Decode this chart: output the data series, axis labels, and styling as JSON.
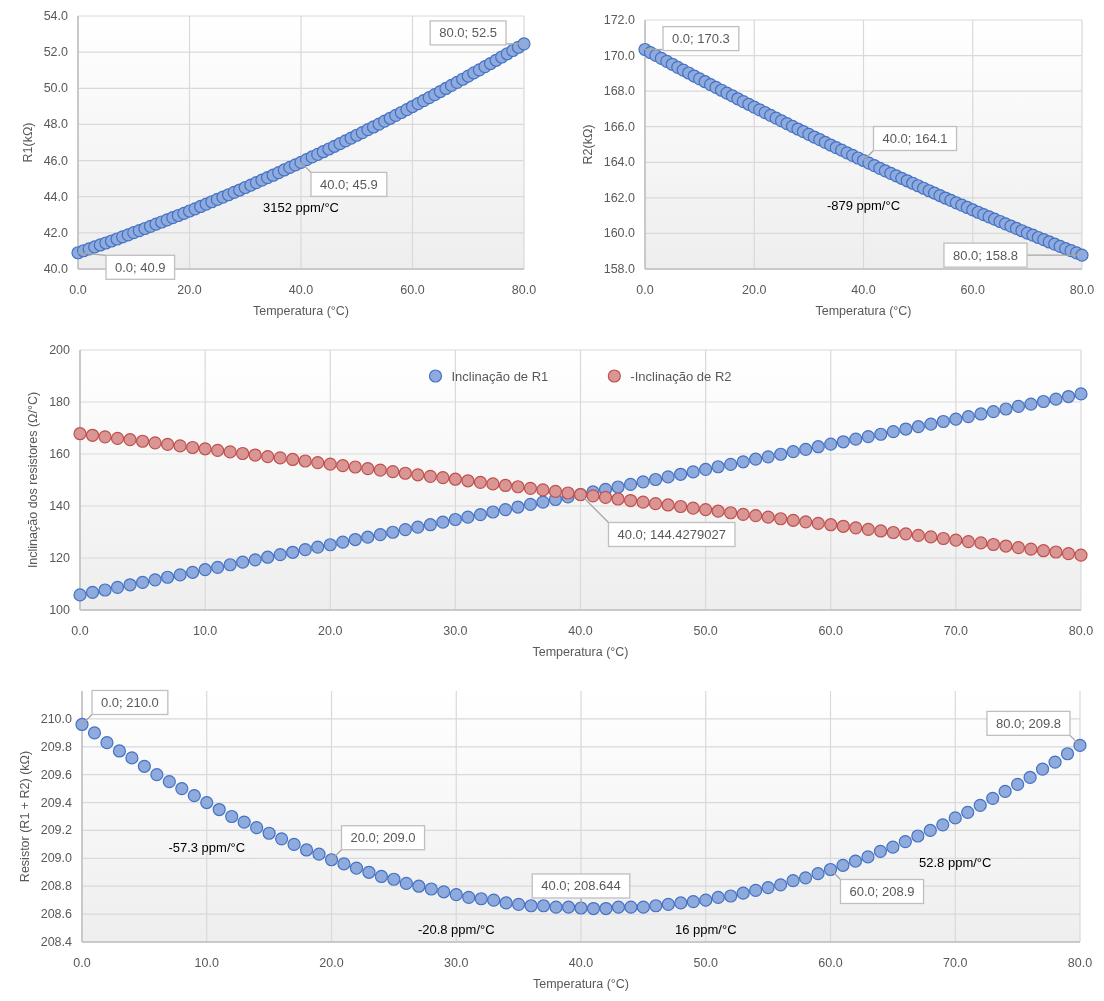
{
  "chart_data": [
    {
      "type": "scatter",
      "xlabel": "Temperatura (°C)",
      "ylabel": "R1(kΩ)",
      "xlim": [
        0,
        80
      ],
      "xticks": [
        {
          "value": 0,
          "label": "0.0"
        },
        {
          "value": 20,
          "label": "20.0"
        },
        {
          "value": 40,
          "label": "40.0"
        },
        {
          "value": 60,
          "label": "60.0"
        },
        {
          "value": 80,
          "label": "80.0"
        }
      ],
      "ylim": [
        40,
        54
      ],
      "yticks": [
        {
          "value": 40,
          "label": "40.0"
        },
        {
          "value": 42,
          "label": "42.0"
        },
        {
          "value": 44,
          "label": "44.0"
        },
        {
          "value": 46,
          "label": "46.0"
        },
        {
          "value": 48,
          "label": "48.0"
        },
        {
          "value": 50,
          "label": "50.0"
        },
        {
          "value": 52,
          "label": "52.0"
        },
        {
          "value": 54,
          "label": "54.0"
        }
      ],
      "grid": true,
      "marker": "circle",
      "x": [
        0,
        1,
        2,
        3,
        4,
        5,
        6,
        7,
        8,
        9,
        10,
        11,
        12,
        13,
        14,
        15,
        16,
        17,
        18,
        19,
        20,
        21,
        22,
        23,
        24,
        25,
        26,
        27,
        28,
        29,
        30,
        31,
        32,
        33,
        34,
        35,
        36,
        37,
        38,
        39,
        40,
        41,
        42,
        43,
        44,
        45,
        46,
        47,
        48,
        49,
        50,
        51,
        52,
        53,
        54,
        55,
        56,
        57,
        58,
        59,
        60,
        61,
        62,
        63,
        64,
        65,
        66,
        67,
        68,
        69,
        70,
        71,
        72,
        73,
        74,
        75,
        76,
        77,
        78,
        79,
        80
      ],
      "series": [
        {
          "color": "#4472c4",
          "values": [
            40.9,
            41.01,
            41.11,
            41.22,
            41.33,
            41.44,
            41.55,
            41.66,
            41.78,
            41.89,
            42.01,
            42.12,
            42.24,
            42.36,
            42.48,
            42.6,
            42.72,
            42.84,
            42.96,
            43.08,
            43.21,
            43.33,
            43.46,
            43.59,
            43.72,
            43.85,
            43.98,
            44.11,
            44.24,
            44.37,
            44.51,
            44.64,
            44.78,
            44.92,
            45.06,
            45.19,
            45.33,
            45.48,
            45.62,
            45.76,
            45.9,
            46.05,
            46.2,
            46.34,
            46.49,
            46.64,
            46.79,
            46.94,
            47.09,
            47.24,
            47.4,
            47.55,
            47.71,
            47.86,
            48.02,
            48.18,
            48.34,
            48.5,
            48.66,
            48.82,
            48.99,
            49.15,
            49.32,
            49.48,
            49.65,
            49.82,
            49.99,
            50.16,
            50.33,
            50.5,
            50.67,
            50.85,
            51.02,
            51.2,
            51.37,
            51.55,
            51.73,
            51.91,
            52.09,
            52.27,
            52.46
          ],
          "value_labels": [
            "0.0; 40.9",
            null,
            null,
            null,
            null,
            null,
            null,
            null,
            null,
            null,
            null,
            null,
            null,
            null,
            null,
            null,
            null,
            null,
            null,
            null,
            null,
            null,
            null,
            null,
            null,
            null,
            null,
            null,
            null,
            null,
            null,
            null,
            null,
            null,
            null,
            null,
            null,
            null,
            null,
            null,
            "40.0; 45.9",
            null,
            null,
            null,
            null,
            null,
            null,
            null,
            null,
            null,
            null,
            null,
            null,
            null,
            null,
            null,
            null,
            null,
            null,
            null,
            null,
            null,
            null,
            null,
            null,
            null,
            null,
            null,
            null,
            null,
            null,
            null,
            null,
            null,
            null,
            null,
            null,
            null,
            null,
            null,
            "80.0; 52.5"
          ]
        }
      ],
      "annotations": [
        "3152 ppm/°C"
      ]
    },
    {
      "type": "scatter",
      "xlabel": "Temperatura (°C)",
      "ylabel": "R2(kΩ)",
      "xlim": [
        0,
        80
      ],
      "xticks": [
        {
          "value": 0,
          "label": "0.0"
        },
        {
          "value": 20,
          "label": "20.0"
        },
        {
          "value": 40,
          "label": "40.0"
        },
        {
          "value": 60,
          "label": "60.0"
        },
        {
          "value": 80,
          "label": "80.0"
        }
      ],
      "ylim": [
        158,
        172
      ],
      "yticks": [
        {
          "value": 158,
          "label": "158.0"
        },
        {
          "value": 160,
          "label": "160.0"
        },
        {
          "value": 162,
          "label": "162.0"
        },
        {
          "value": 164,
          "label": "164.0"
        },
        {
          "value": 166,
          "label": "166.0"
        },
        {
          "value": 168,
          "label": "168.0"
        },
        {
          "value": 170,
          "label": "170.0"
        },
        {
          "value": 172,
          "label": "172.0"
        }
      ],
      "grid": true,
      "marker": "circle",
      "x": [
        0,
        1,
        2,
        3,
        4,
        5,
        6,
        7,
        8,
        9,
        10,
        11,
        12,
        13,
        14,
        15,
        16,
        17,
        18,
        19,
        20,
        21,
        22,
        23,
        24,
        25,
        26,
        27,
        28,
        29,
        30,
        31,
        32,
        33,
        34,
        35,
        36,
        37,
        38,
        39,
        40,
        41,
        42,
        43,
        44,
        45,
        46,
        47,
        48,
        49,
        50,
        51,
        52,
        53,
        54,
        55,
        56,
        57,
        58,
        59,
        60,
        61,
        62,
        63,
        64,
        65,
        66,
        67,
        68,
        69,
        70,
        71,
        72,
        73,
        74,
        75,
        76,
        77,
        78,
        79,
        80
      ],
      "series": [
        {
          "color": "#4472c4",
          "values": [
            170.34,
            170.17,
            170.01,
            169.84,
            169.67,
            169.51,
            169.34,
            169.18,
            169.02,
            168.85,
            168.69,
            168.53,
            168.37,
            168.21,
            168.05,
            167.89,
            167.73,
            167.57,
            167.41,
            167.26,
            167.1,
            166.95,
            166.79,
            166.64,
            166.48,
            166.33,
            166.17,
            166.02,
            165.87,
            165.72,
            165.57,
            165.42,
            165.27,
            165.12,
            164.97,
            164.82,
            164.68,
            164.53,
            164.39,
            164.24,
            164.1,
            163.95,
            163.81,
            163.66,
            163.52,
            163.38,
            163.24,
            163.1,
            162.96,
            162.82,
            162.68,
            162.54,
            162.4,
            162.27,
            162.13,
            161.99,
            161.86,
            161.72,
            161.59,
            161.46,
            161.32,
            161.19,
            161.06,
            160.93,
            160.8,
            160.67,
            160.54,
            160.41,
            160.28,
            160.15,
            160.02,
            159.9,
            159.77,
            159.65,
            159.52,
            159.4,
            159.27,
            159.15,
            159.03,
            158.91,
            158.78
          ],
          "value_labels": [
            "0.0; 170.3",
            null,
            null,
            null,
            null,
            null,
            null,
            null,
            null,
            null,
            null,
            null,
            null,
            null,
            null,
            null,
            null,
            null,
            null,
            null,
            null,
            null,
            null,
            null,
            null,
            null,
            null,
            null,
            null,
            null,
            null,
            null,
            null,
            null,
            null,
            null,
            null,
            null,
            null,
            null,
            "40.0; 164.1",
            null,
            null,
            null,
            null,
            null,
            null,
            null,
            null,
            null,
            null,
            null,
            null,
            null,
            null,
            null,
            null,
            null,
            null,
            null,
            null,
            null,
            null,
            null,
            null,
            null,
            null,
            null,
            null,
            null,
            null,
            null,
            null,
            null,
            null,
            null,
            null,
            null,
            null,
            null,
            "80.0; 158.8"
          ]
        }
      ],
      "annotations": [
        "-879 ppm/°C"
      ]
    },
    {
      "type": "scatter",
      "xlabel": "Temperatura (°C)",
      "ylabel": "Inclinação dos resistores (Ω/°C)",
      "xlim": [
        0,
        80
      ],
      "xticks": [
        {
          "value": 0,
          "label": "0.0"
        },
        {
          "value": 10,
          "label": "10.0"
        },
        {
          "value": 20,
          "label": "20.0"
        },
        {
          "value": 30,
          "label": "30.0"
        },
        {
          "value": 40,
          "label": "40.0"
        },
        {
          "value": 50,
          "label": "50.0"
        },
        {
          "value": 60,
          "label": "60.0"
        },
        {
          "value": 70,
          "label": "70.0"
        },
        {
          "value": 80,
          "label": "80.0"
        }
      ],
      "ylim": [
        100,
        200
      ],
      "yticks": [
        100,
        120,
        140,
        160,
        180,
        200
      ],
      "grid": true,
      "marker": "circle",
      "legend": "top",
      "x": [
        0,
        1,
        2,
        3,
        4,
        5,
        6,
        7,
        8,
        9,
        10,
        11,
        12,
        13,
        14,
        15,
        16,
        17,
        18,
        19,
        20,
        21,
        22,
        23,
        24,
        25,
        26,
        27,
        28,
        29,
        30,
        31,
        32,
        33,
        34,
        35,
        36,
        37,
        38,
        39,
        40,
        41,
        42,
        43,
        44,
        45,
        46,
        47,
        48,
        49,
        50,
        51,
        52,
        53,
        54,
        55,
        56,
        57,
        58,
        59,
        60,
        61,
        62,
        63,
        64,
        65,
        66,
        67,
        68,
        69,
        70,
        71,
        72,
        73,
        74,
        75,
        76,
        77,
        78,
        79,
        80
      ],
      "series": [
        {
          "name": "Inclinação de R1",
          "color": "#4472c4",
          "values": [
            105.8,
            106.8,
            107.7,
            108.7,
            109.7,
            110.6,
            111.6,
            112.6,
            113.5,
            114.5,
            115.5,
            116.4,
            117.4,
            118.4,
            119.3,
            120.3,
            121.3,
            122.2,
            123.2,
            124.2,
            125.1,
            126.1,
            127.1,
            128.0,
            129.0,
            129.9,
            130.9,
            131.9,
            132.8,
            133.8,
            134.8,
            135.7,
            136.7,
            137.7,
            138.6,
            139.6,
            140.6,
            141.5,
            142.5,
            143.5,
            144.4279027,
            145.4,
            146.4,
            147.3,
            148.3,
            149.3,
            150.2,
            151.2,
            152.2,
            153.1,
            154.1,
            155.1,
            156.0,
            157.0,
            158.0,
            158.9,
            159.9,
            160.9,
            161.8,
            162.8,
            163.8,
            164.7,
            165.7,
            166.7,
            167.6,
            168.6,
            169.6,
            170.5,
            171.5,
            172.5,
            173.4,
            174.4,
            175.4,
            176.3,
            177.3,
            178.3,
            179.2,
            180.2,
            181.1,
            182.1,
            183.1
          ],
          "value_labels": [
            null,
            null,
            null,
            null,
            null,
            null,
            null,
            null,
            null,
            null,
            null,
            null,
            null,
            null,
            null,
            null,
            null,
            null,
            null,
            null,
            null,
            null,
            null,
            null,
            null,
            null,
            null,
            null,
            null,
            null,
            null,
            null,
            null,
            null,
            null,
            null,
            null,
            null,
            null,
            null,
            "40.0; 144.4279027",
            null,
            null,
            null,
            null,
            null,
            null,
            null,
            null,
            null,
            null,
            null,
            null,
            null,
            null,
            null,
            null,
            null,
            null,
            null,
            null,
            null,
            null,
            null,
            null,
            null,
            null,
            null,
            null,
            null,
            null,
            null,
            null,
            null,
            null,
            null,
            null,
            null,
            null,
            null,
            null
          ]
        },
        {
          "name": "-Inclinação de R2",
          "color": "#c0504d",
          "values": [
            167.8,
            167.2,
            166.6,
            166.0,
            165.5,
            164.9,
            164.3,
            163.7,
            163.1,
            162.5,
            162.0,
            161.4,
            160.8,
            160.2,
            159.6,
            159.0,
            158.5,
            157.9,
            157.3,
            156.7,
            156.1,
            155.5,
            155.0,
            154.4,
            153.8,
            153.2,
            152.6,
            152.0,
            151.4,
            150.9,
            150.3,
            149.7,
            149.1,
            148.5,
            147.9,
            147.4,
            146.8,
            146.2,
            145.6,
            145.0,
            144.4,
            143.9,
            143.3,
            142.7,
            142.1,
            141.5,
            140.9,
            140.4,
            139.8,
            139.2,
            138.6,
            138.0,
            137.4,
            136.8,
            136.3,
            135.7,
            135.1,
            134.5,
            133.9,
            133.3,
            132.8,
            132.2,
            131.6,
            131.0,
            130.4,
            129.8,
            129.3,
            128.7,
            128.1,
            127.5,
            126.9,
            126.3,
            125.8,
            125.2,
            124.6,
            124.0,
            123.4,
            122.8,
            122.3,
            121.7,
            121.1
          ]
        }
      ]
    },
    {
      "type": "scatter",
      "xlabel": "Temperatura (°C)",
      "ylabel": "Resistor (R1 + R2) (kΩ)",
      "xlim": [
        0,
        80
      ],
      "xticks": [
        {
          "value": 0,
          "label": "0.0"
        },
        {
          "value": 10,
          "label": "10.0"
        },
        {
          "value": 20,
          "label": "20.0"
        },
        {
          "value": 30,
          "label": "30.0"
        },
        {
          "value": 40,
          "label": "40.0"
        },
        {
          "value": 50,
          "label": "50.0"
        },
        {
          "value": 60,
          "label": "60.0"
        },
        {
          "value": 70,
          "label": "70.0"
        },
        {
          "value": 80,
          "label": "80.0"
        }
      ],
      "ylim": [
        208.4,
        210.2
      ],
      "yticks": [
        {
          "value": 208.4,
          "label": "208.4"
        },
        {
          "value": 208.6,
          "label": "208.6"
        },
        {
          "value": 208.8,
          "label": "208.8"
        },
        {
          "value": 209,
          "label": "209.0"
        },
        {
          "value": 209.2,
          "label": "209.2"
        },
        {
          "value": 209.4,
          "label": "209.4"
        },
        {
          "value": 209.6,
          "label": "209.6"
        },
        {
          "value": 209.8,
          "label": "209.8"
        },
        {
          "value": 210,
          "label": "210.0"
        }
      ],
      "grid": true,
      "marker": "circle",
      "x": [
        0,
        1,
        2,
        3,
        4,
        5,
        6,
        7,
        8,
        9,
        10,
        11,
        12,
        13,
        14,
        15,
        16,
        17,
        18,
        19,
        20,
        21,
        22,
        23,
        24,
        25,
        26,
        27,
        28,
        29,
        30,
        31,
        32,
        33,
        34,
        35,
        36,
        37,
        38,
        39,
        40,
        41,
        42,
        43,
        44,
        45,
        46,
        47,
        48,
        49,
        50,
        51,
        52,
        53,
        54,
        55,
        56,
        57,
        58,
        59,
        60,
        61,
        62,
        63,
        64,
        65,
        66,
        67,
        68,
        69,
        70,
        71,
        72,
        73,
        74,
        75,
        76,
        77,
        78,
        79,
        80
      ],
      "series": [
        {
          "color": "#4472c4",
          "values": [
            209.96,
            209.9,
            209.83,
            209.77,
            209.72,
            209.66,
            209.6,
            209.55,
            209.5,
            209.45,
            209.4,
            209.35,
            209.3,
            209.26,
            209.22,
            209.18,
            209.14,
            209.1,
            209.06,
            209.03,
            208.99,
            208.96,
            208.93,
            208.9,
            208.87,
            208.85,
            208.82,
            208.8,
            208.78,
            208.76,
            208.74,
            208.72,
            208.71,
            208.7,
            208.68,
            208.67,
            208.66,
            208.66,
            208.65,
            208.65,
            208.644,
            208.64,
            208.64,
            208.65,
            208.65,
            208.65,
            208.66,
            208.67,
            208.68,
            208.69,
            208.7,
            208.72,
            208.73,
            208.75,
            208.77,
            208.79,
            208.81,
            208.84,
            208.86,
            208.89,
            208.92,
            208.95,
            208.98,
            209.01,
            209.05,
            209.08,
            209.12,
            209.16,
            209.2,
            209.24,
            209.29,
            209.33,
            209.38,
            209.43,
            209.48,
            209.53,
            209.58,
            209.64,
            209.69,
            209.75,
            209.81
          ],
          "value_labels": [
            "0.0; 210.0",
            null,
            null,
            null,
            null,
            null,
            null,
            null,
            null,
            null,
            null,
            null,
            null,
            null,
            null,
            null,
            null,
            null,
            null,
            null,
            "20.0; 209.0",
            null,
            null,
            null,
            null,
            null,
            null,
            null,
            null,
            null,
            null,
            null,
            null,
            null,
            null,
            null,
            null,
            null,
            null,
            null,
            "40.0; 208.644",
            null,
            null,
            null,
            null,
            null,
            null,
            null,
            null,
            null,
            null,
            null,
            null,
            null,
            null,
            null,
            null,
            null,
            null,
            null,
            "60.0; 208.9",
            null,
            null,
            null,
            null,
            null,
            null,
            null,
            null,
            null,
            null,
            null,
            null,
            null,
            null,
            null,
            null,
            null,
            null,
            null,
            "80.0; 209.8"
          ]
        }
      ],
      "annotations": [
        "-57.3 ppm/°C",
        "-20.8 ppm/°C",
        "16 ppm/°C",
        "52.8 ppm/°C"
      ]
    }
  ]
}
